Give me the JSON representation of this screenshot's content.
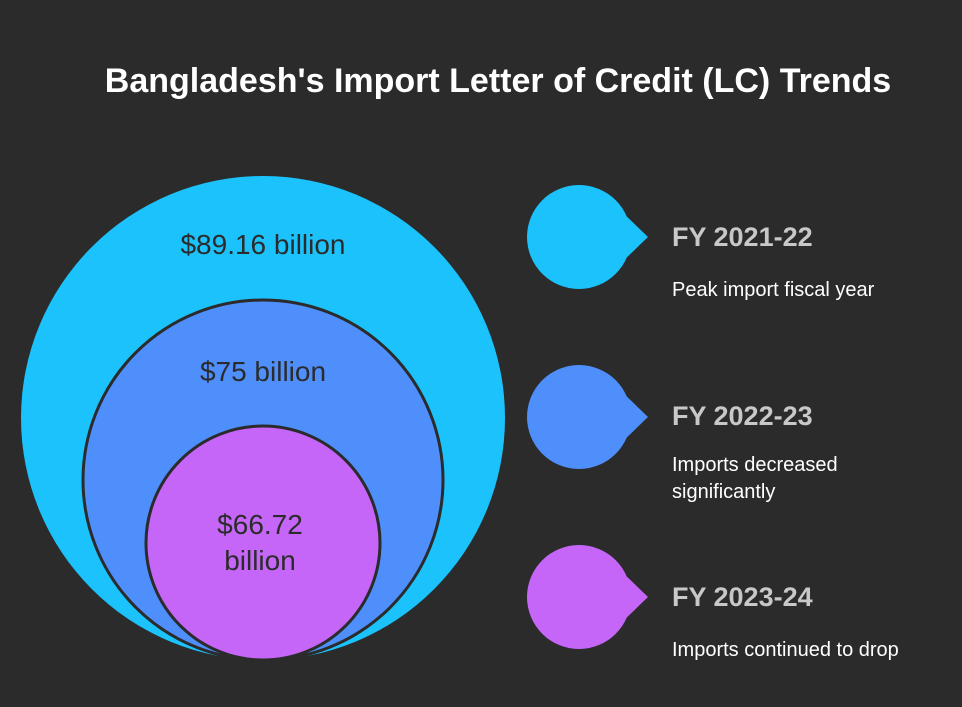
{
  "title": "Bangladesh's Import Letter of Credit (LC) Trends",
  "items": [
    {
      "amount": "$89.16 billion",
      "year": "FY 2021-22",
      "description": "Peak import fiscal year"
    },
    {
      "amount": "$75 billion",
      "year": "FY 2022-23",
      "description": "Imports decreased significantly"
    },
    {
      "amount": "$66.72 billion",
      "year": "FY 2023-24",
      "description": "Imports continued to drop"
    }
  ]
}
